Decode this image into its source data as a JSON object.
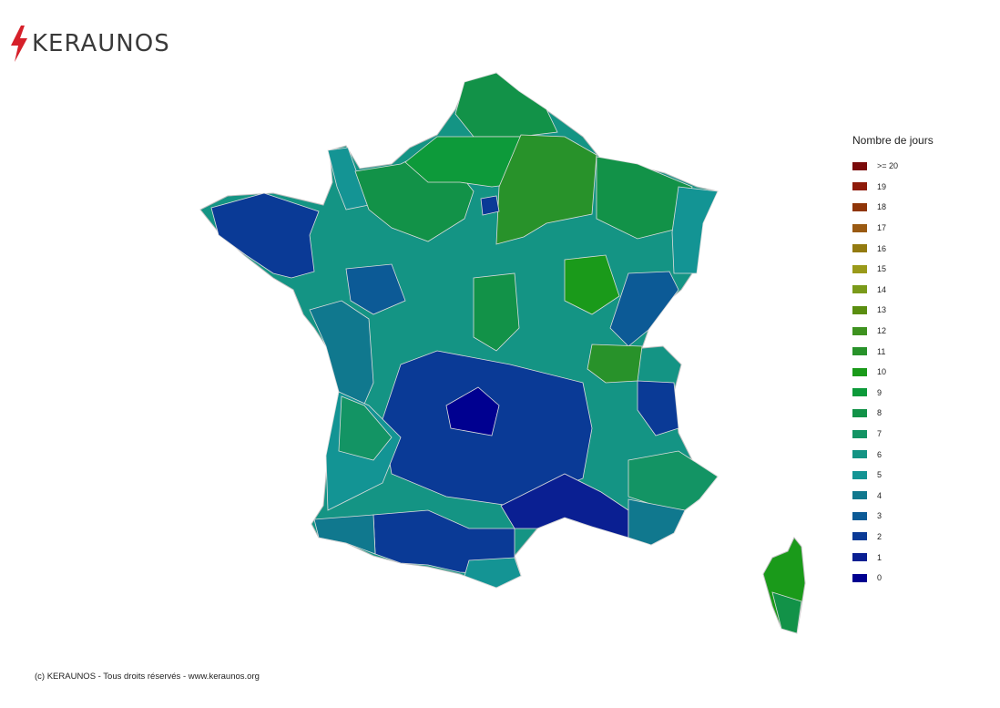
{
  "brand": {
    "name": "KERAUNOS",
    "logo_icon": "lightning-bolt-icon",
    "bolt_color": "#d6202a"
  },
  "legend": {
    "title": "Nombre de jours",
    "items": [
      {
        "label": ">= 20",
        "color": "#7a0a0a"
      },
      {
        "label": "19",
        "color": "#8e1a0a"
      },
      {
        "label": "18",
        "color": "#8f3508"
      },
      {
        "label": "17",
        "color": "#9a5a12"
      },
      {
        "label": "16",
        "color": "#937a10"
      },
      {
        "label": "15",
        "color": "#9a9a1a"
      },
      {
        "label": "14",
        "color": "#7a9a1a"
      },
      {
        "label": "13",
        "color": "#5a8e10"
      },
      {
        "label": "12",
        "color": "#3e9220"
      },
      {
        "label": "11",
        "color": "#28922a"
      },
      {
        "label": "10",
        "color": "#1a9a1a"
      },
      {
        "label": "9",
        "color": "#0d9a3a"
      },
      {
        "label": "8",
        "color": "#129248"
      },
      {
        "label": "7",
        "color": "#139464"
      },
      {
        "label": "6",
        "color": "#149484"
      },
      {
        "label": "5",
        "color": "#139494"
      },
      {
        "label": "4",
        "color": "#10788e"
      },
      {
        "label": "3",
        "color": "#0c5a96"
      },
      {
        "label": "2",
        "color": "#0a3a96"
      },
      {
        "label": "1",
        "color": "#0a1f92"
      },
      {
        "label": "0",
        "color": "#000090"
      }
    ]
  },
  "footer": {
    "copyright": "(c) KERAUNOS - Tous droits réservés - www.keraunos.org"
  }
}
